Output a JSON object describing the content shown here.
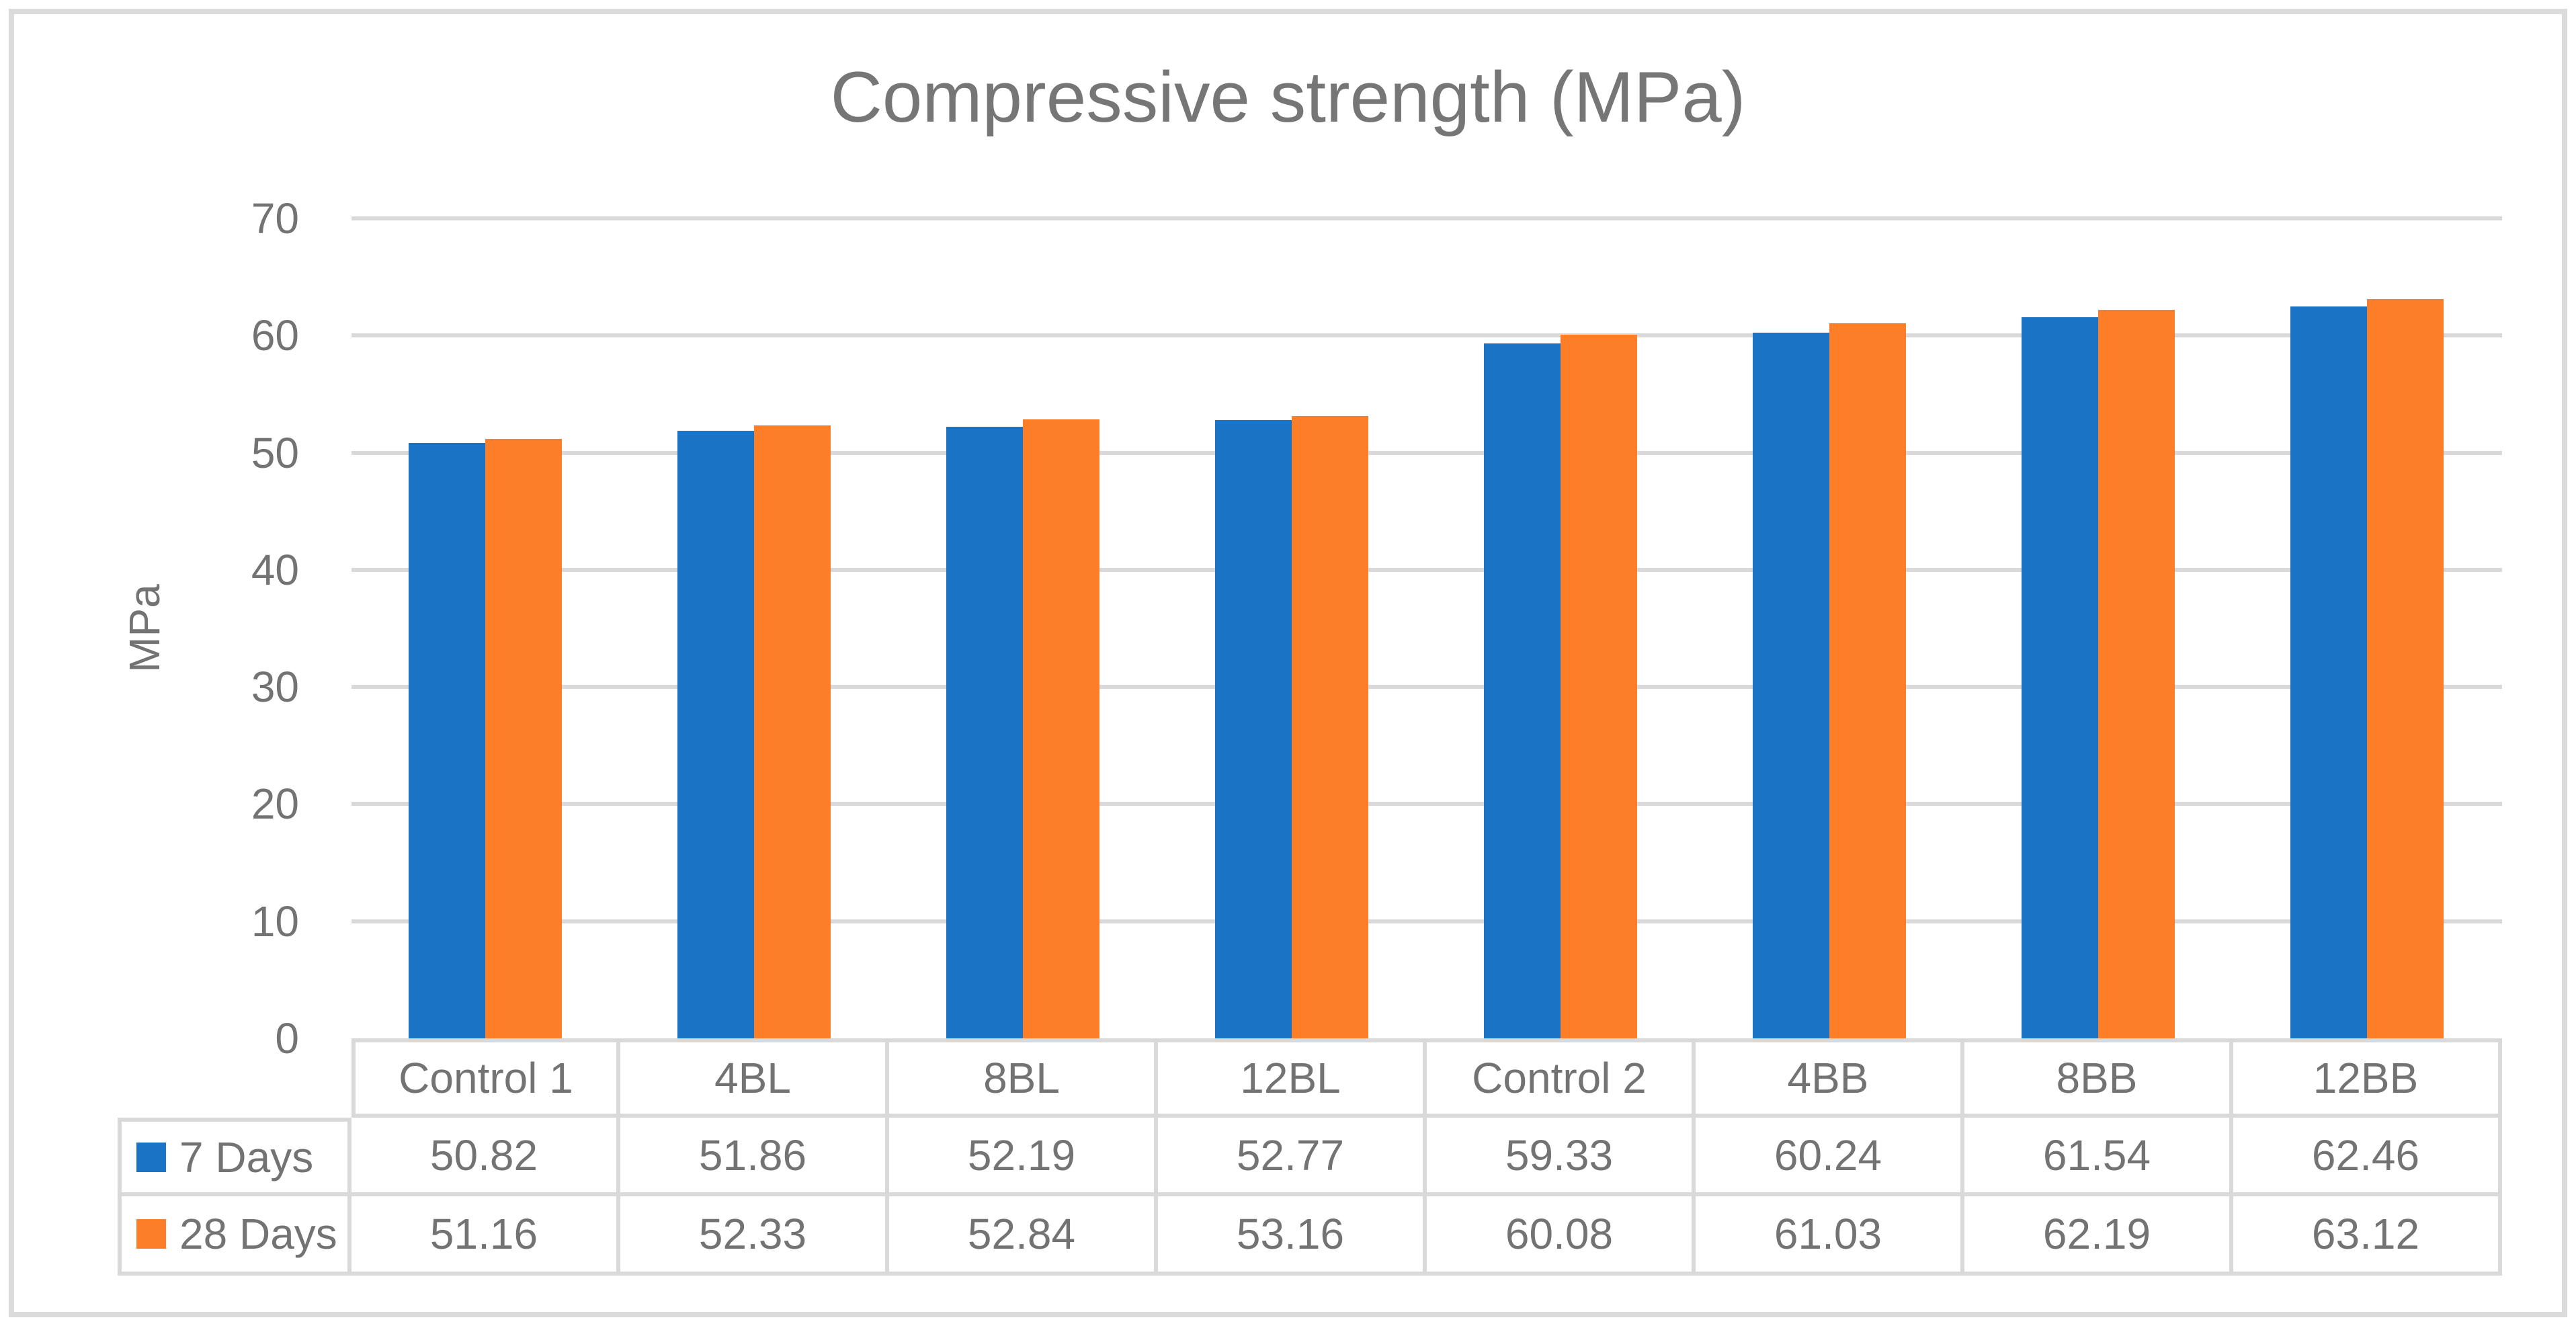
{
  "chart_data": {
    "type": "bar",
    "title": "Compressive strength (MPa)",
    "ylabel": "MPa",
    "xlabel": "",
    "ylim": [
      0,
      70
    ],
    "yticks": [
      0,
      10,
      20,
      30,
      40,
      50,
      60,
      70
    ],
    "categories": [
      "Control 1",
      "4BL",
      "8BL",
      "12BL",
      "Control 2",
      "4BB",
      "8BB",
      "12BB"
    ],
    "series": [
      {
        "name": "7 Days",
        "color": "#1B73C6",
        "values": [
          50.82,
          51.86,
          52.19,
          52.77,
          59.33,
          60.24,
          61.54,
          62.46
        ]
      },
      {
        "name": "28 Days",
        "color": "#FD7E28",
        "values": [
          51.16,
          52.33,
          52.84,
          53.16,
          60.08,
          61.03,
          62.19,
          63.12
        ]
      }
    ],
    "grid": "horizontal-only",
    "gridline_color": "#D9D9D9",
    "text_color": "#737373",
    "title_color": "#767676",
    "border_color": "#DBDBDB",
    "legend_position": "data-table-left",
    "data_table": true
  }
}
